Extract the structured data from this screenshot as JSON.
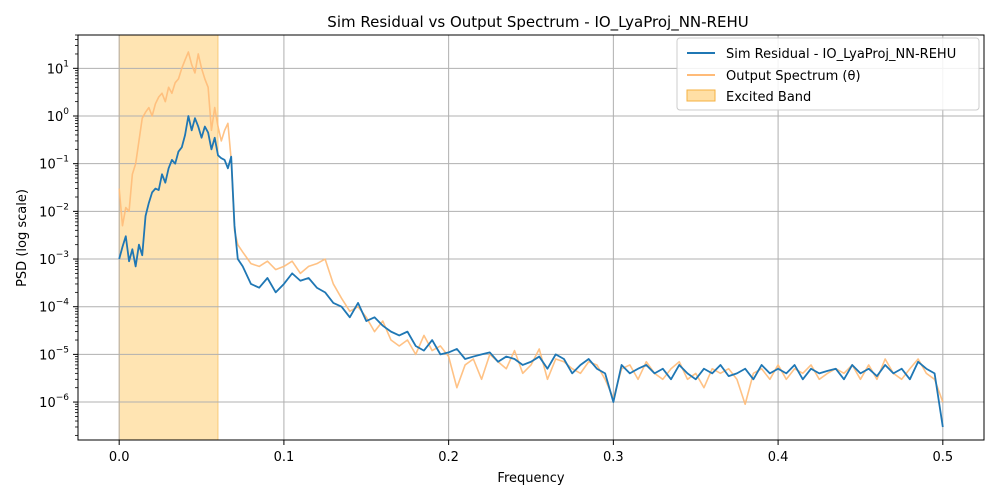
{
  "chart_data": {
    "type": "line",
    "title": "Sim Residual vs Output Spectrum - IO_LyaProj_NN-REHU",
    "xlabel": "Frequency",
    "ylabel": "PSD (log scale)",
    "yscale": "log",
    "xlim": [
      -0.025,
      0.525
    ],
    "ylim": [
      1.6e-07,
      50
    ],
    "grid": true,
    "legend_position": "top-right",
    "x_ticks": [
      "0.0",
      "0.1",
      "0.2",
      "0.3",
      "0.4",
      "0.5"
    ],
    "x_tick_values": [
      0,
      0.1,
      0.2,
      0.3,
      0.4,
      0.5
    ],
    "y_ticks": [
      {
        "exp": -6,
        "base": "10",
        "power": "−6"
      },
      {
        "exp": -5,
        "base": "10",
        "power": "−5"
      },
      {
        "exp": -4,
        "base": "10",
        "power": "−4"
      },
      {
        "exp": -3,
        "base": "10",
        "power": "−3"
      },
      {
        "exp": -2,
        "base": "10",
        "power": "−2"
      },
      {
        "exp": -1,
        "base": "10",
        "power": "−1"
      },
      {
        "exp": 0,
        "base": "10",
        "power": "0"
      },
      {
        "exp": 1,
        "base": "10",
        "power": "1"
      }
    ],
    "band": {
      "name": "Excited Band",
      "x_start": 0.0,
      "x_end": 0.06,
      "color": "#ffd27f"
    },
    "series": [
      {
        "name": "Sim Residual - IO_LyaProj_NN-REHU",
        "color": "#1f77b4",
        "x": [
          0.0,
          0.002,
          0.004,
          0.006,
          0.008,
          0.01,
          0.012,
          0.014,
          0.016,
          0.018,
          0.02,
          0.022,
          0.024,
          0.026,
          0.028,
          0.03,
          0.032,
          0.034,
          0.036,
          0.038,
          0.04,
          0.042,
          0.044,
          0.046,
          0.048,
          0.05,
          0.052,
          0.054,
          0.056,
          0.058,
          0.06,
          0.062,
          0.064,
          0.066,
          0.068,
          0.07,
          0.072,
          0.075,
          0.08,
          0.085,
          0.09,
          0.095,
          0.1,
          0.105,
          0.11,
          0.115,
          0.12,
          0.125,
          0.13,
          0.135,
          0.14,
          0.145,
          0.15,
          0.155,
          0.16,
          0.165,
          0.17,
          0.175,
          0.18,
          0.185,
          0.19,
          0.195,
          0.2,
          0.205,
          0.21,
          0.215,
          0.22,
          0.225,
          0.23,
          0.235,
          0.24,
          0.245,
          0.25,
          0.255,
          0.26,
          0.265,
          0.27,
          0.275,
          0.28,
          0.285,
          0.29,
          0.295,
          0.3,
          0.305,
          0.31,
          0.315,
          0.32,
          0.325,
          0.33,
          0.335,
          0.34,
          0.345,
          0.35,
          0.355,
          0.36,
          0.365,
          0.37,
          0.375,
          0.38,
          0.385,
          0.39,
          0.395,
          0.4,
          0.405,
          0.41,
          0.415,
          0.42,
          0.425,
          0.43,
          0.435,
          0.44,
          0.445,
          0.45,
          0.455,
          0.46,
          0.465,
          0.47,
          0.475,
          0.48,
          0.485,
          0.49,
          0.495,
          0.5
        ],
        "y": [
          0.001,
          0.0018,
          0.003,
          0.0009,
          0.0016,
          0.0007,
          0.002,
          0.0012,
          0.008,
          0.015,
          0.025,
          0.03,
          0.028,
          0.06,
          0.04,
          0.08,
          0.12,
          0.1,
          0.18,
          0.22,
          0.4,
          1.0,
          0.5,
          0.9,
          0.6,
          0.35,
          0.6,
          0.45,
          0.2,
          0.35,
          0.15,
          0.13,
          0.12,
          0.08,
          0.14,
          0.005,
          0.001,
          0.0007,
          0.0003,
          0.00025,
          0.0004,
          0.0002,
          0.0003,
          0.0005,
          0.00035,
          0.0004,
          0.00025,
          0.0002,
          0.00012,
          0.0001,
          6e-05,
          0.00012,
          5e-05,
          6e-05,
          4e-05,
          3e-05,
          2.5e-05,
          3e-05,
          1.5e-05,
          1.2e-05,
          2e-05,
          1e-05,
          1.1e-05,
          1.3e-05,
          8e-06,
          9e-06,
          1e-05,
          1.1e-05,
          7e-06,
          9e-06,
          8e-06,
          6e-06,
          7e-06,
          9e-06,
          5e-06,
          1e-05,
          8e-06,
          4e-06,
          6e-06,
          8e-06,
          5e-06,
          4e-06,
          1e-06,
          6e-06,
          4e-06,
          5e-06,
          6e-06,
          4e-06,
          5e-06,
          3e-06,
          6e-06,
          4e-06,
          3e-06,
          5e-06,
          4e-06,
          6e-06,
          3.5e-06,
          4e-06,
          5e-06,
          3e-06,
          6e-06,
          4e-06,
          5e-06,
          4e-06,
          6e-06,
          3e-06,
          5e-06,
          4e-06,
          4.5e-06,
          5e-06,
          3e-06,
          6e-06,
          4e-06,
          5e-06,
          3.5e-06,
          6e-06,
          4e-06,
          5e-06,
          3e-06,
          7e-06,
          5e-06,
          4e-06,
          3e-07
        ]
      },
      {
        "name": "Output Spectrum (θ)",
        "color": "#ffbb78",
        "x": [
          0.0,
          0.002,
          0.004,
          0.006,
          0.008,
          0.01,
          0.012,
          0.014,
          0.016,
          0.018,
          0.02,
          0.022,
          0.024,
          0.026,
          0.028,
          0.03,
          0.032,
          0.034,
          0.036,
          0.038,
          0.04,
          0.042,
          0.044,
          0.046,
          0.048,
          0.05,
          0.052,
          0.054,
          0.056,
          0.058,
          0.06,
          0.062,
          0.064,
          0.066,
          0.068,
          0.07,
          0.072,
          0.075,
          0.08,
          0.085,
          0.09,
          0.095,
          0.1,
          0.105,
          0.11,
          0.115,
          0.12,
          0.125,
          0.13,
          0.135,
          0.14,
          0.145,
          0.15,
          0.155,
          0.16,
          0.165,
          0.17,
          0.175,
          0.18,
          0.185,
          0.19,
          0.195,
          0.2,
          0.205,
          0.21,
          0.215,
          0.22,
          0.225,
          0.23,
          0.235,
          0.24,
          0.245,
          0.25,
          0.255,
          0.26,
          0.265,
          0.27,
          0.275,
          0.28,
          0.285,
          0.29,
          0.295,
          0.3,
          0.305,
          0.31,
          0.315,
          0.32,
          0.325,
          0.33,
          0.335,
          0.34,
          0.345,
          0.35,
          0.355,
          0.36,
          0.365,
          0.37,
          0.375,
          0.38,
          0.385,
          0.39,
          0.395,
          0.4,
          0.405,
          0.41,
          0.415,
          0.42,
          0.425,
          0.43,
          0.435,
          0.44,
          0.445,
          0.45,
          0.455,
          0.46,
          0.465,
          0.47,
          0.475,
          0.48,
          0.485,
          0.49,
          0.495,
          0.5
        ],
        "y": [
          0.03,
          0.005,
          0.012,
          0.01,
          0.06,
          0.1,
          0.3,
          0.9,
          1.2,
          1.5,
          1.0,
          1.8,
          2.5,
          3.0,
          2.0,
          4.0,
          3.0,
          5.0,
          6.0,
          10.0,
          15.0,
          22.0,
          12.0,
          8.0,
          20.0,
          10.0,
          6.0,
          4.0,
          0.5,
          1.5,
          0.6,
          0.3,
          0.5,
          0.7,
          0.12,
          0.004,
          0.002,
          0.0014,
          0.0008,
          0.0007,
          0.0009,
          0.0006,
          0.0007,
          0.0009,
          0.0005,
          0.0007,
          0.0008,
          0.001,
          0.0003,
          0.00015,
          8e-05,
          0.0001,
          6e-05,
          3e-05,
          5e-05,
          2e-05,
          1.5e-05,
          2e-05,
          1e-05,
          2.5e-05,
          1.2e-05,
          1.5e-05,
          9e-06,
          2e-06,
          6e-06,
          8e-06,
          3e-06,
          1e-05,
          7e-06,
          5e-06,
          1.2e-05,
          4e-06,
          6e-06,
          1.3e-05,
          3e-06,
          8e-06,
          7e-06,
          5e-06,
          4e-06,
          7e-06,
          6e-06,
          3e-06,
          1.2e-06,
          5e-06,
          6e-06,
          3e-06,
          7e-06,
          4e-06,
          3e-06,
          5e-06,
          7e-06,
          3e-06,
          4e-06,
          2e-06,
          5e-06,
          4e-06,
          5e-06,
          3e-06,
          9e-07,
          4e-06,
          5e-06,
          3e-06,
          6e-06,
          3e-06,
          5e-06,
          4e-06,
          6e-06,
          3e-06,
          4e-06,
          5e-06,
          4e-06,
          6e-06,
          3e-06,
          6e-06,
          3e-06,
          8e-06,
          4e-06,
          3e-06,
          5e-06,
          8e-06,
          4e-06,
          3e-06,
          1e-06
        ]
      }
    ]
  }
}
